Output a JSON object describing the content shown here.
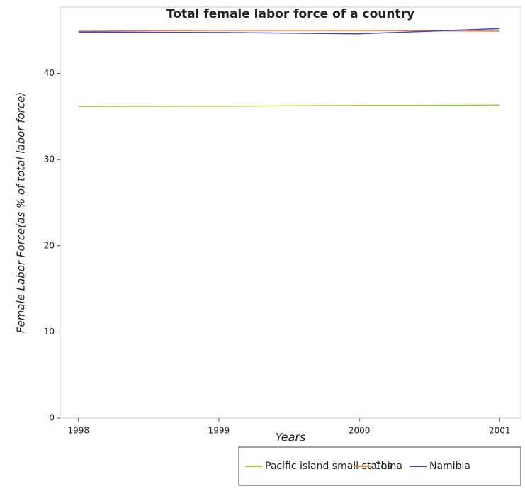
{
  "chart_data": {
    "type": "line",
    "title": "Total female labor force of a country",
    "xlabel": "Years",
    "ylabel": "Female Labor Force(as % of total labor force)",
    "x": [
      1998,
      1999,
      2000,
      2001
    ],
    "xlim": [
      1997.87,
      2001.15
    ],
    "xticks": [
      1998,
      1999,
      2000,
      2001
    ],
    "ylim": [
      0,
      47.7
    ],
    "yticks": [
      0,
      10,
      20,
      30,
      40
    ],
    "series": [
      {
        "name": "Pacific island small states",
        "color": "#9acd32",
        "values": [
          36.17,
          36.2,
          36.28,
          36.33
        ]
      },
      {
        "name": "China",
        "color": "#f07a2a",
        "values": [
          44.9,
          45.0,
          45.0,
          44.9
        ]
      },
      {
        "name": "Namibia",
        "color": "#4a40c8",
        "values": [
          44.8,
          44.75,
          44.6,
          45.2
        ]
      }
    ],
    "legend": "bottom-right",
    "grid": false
  }
}
